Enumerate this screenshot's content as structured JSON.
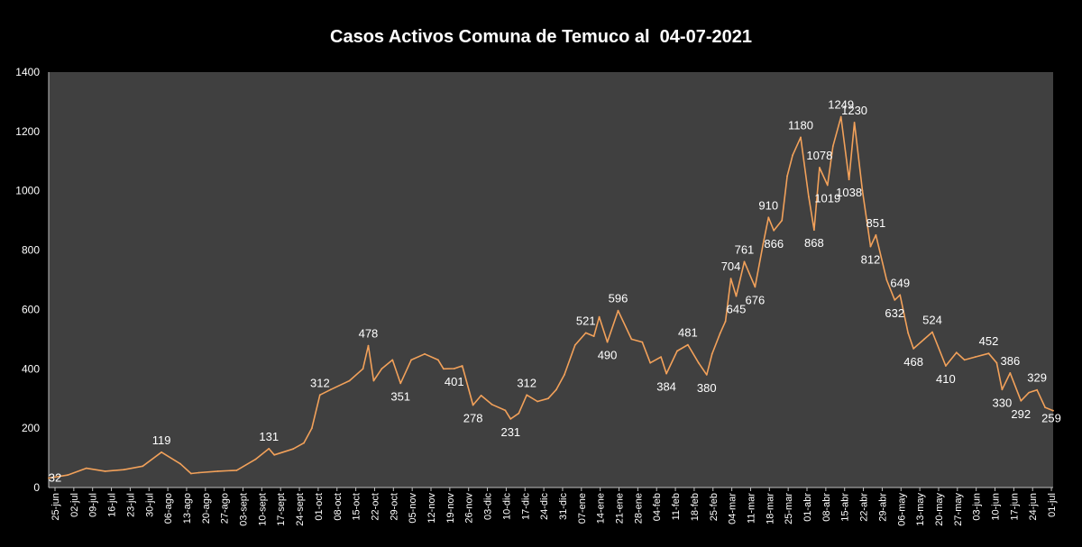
{
  "chart_data": {
    "type": "line",
    "title": "Casos Activos Comuna de Temuco al  04-07-2021",
    "xlabel": "",
    "ylabel": "",
    "ylim": [
      0,
      1400
    ],
    "yticks": [
      0,
      200,
      400,
      600,
      800,
      1000,
      1200,
      1400
    ],
    "grid": false,
    "colors": {
      "background": "#000000",
      "plot_area": "#404040",
      "line": "#f2a15a",
      "text": "#ffffff",
      "axis": "#bfbfbf"
    },
    "x_start": "2020-06-25",
    "x_end": "2021-07-04",
    "x_tick_labels": [
      "25-jun",
      "02-jul",
      "09-jul",
      "16-jul",
      "23-jul",
      "30-jul",
      "06-ago",
      "13-ago",
      "20-ago",
      "27-ago",
      "03-sept",
      "10-sept",
      "17-sept",
      "24-sept",
      "01-oct",
      "08-oct",
      "15-oct",
      "22-oct",
      "29-oct",
      "05-nov",
      "12-nov",
      "19-nov",
      "26-nov",
      "03-dic",
      "10-dic",
      "17-dic",
      "24-dic",
      "31-dic",
      "07-ene",
      "14-ene",
      "21-ene",
      "28-ene",
      "04-feb",
      "11-feb",
      "18-feb",
      "25-feb",
      "04-mar",
      "11-mar",
      "18-mar",
      "25-mar",
      "01-abr",
      "08-abr",
      "15-abr",
      "22-abr",
      "29-abr",
      "06-may",
      "13-may",
      "20-may",
      "27-may",
      "03-jun",
      "10-jun",
      "17-jun",
      "24-jun",
      "01-jul"
    ],
    "series": [
      {
        "points": [
          [
            "2020-06-25",
            32
          ],
          [
            "2020-07-02",
            42
          ],
          [
            "2020-07-09",
            65
          ],
          [
            "2020-07-16",
            55
          ],
          [
            "2020-07-23",
            60
          ],
          [
            "2020-07-30",
            72
          ],
          [
            "2020-08-06",
            119
          ],
          [
            "2020-08-13",
            80
          ],
          [
            "2020-08-17",
            47
          ],
          [
            "2020-08-20",
            50
          ],
          [
            "2020-08-27",
            55
          ],
          [
            "2020-09-03",
            58
          ],
          [
            "2020-09-10",
            95
          ],
          [
            "2020-09-15",
            131
          ],
          [
            "2020-09-17",
            110
          ],
          [
            "2020-09-24",
            130
          ],
          [
            "2020-09-28",
            150
          ],
          [
            "2020-10-01",
            200
          ],
          [
            "2020-10-04",
            312
          ],
          [
            "2020-10-08",
            330
          ],
          [
            "2020-10-15",
            360
          ],
          [
            "2020-10-20",
            400
          ],
          [
            "2020-10-22",
            478
          ],
          [
            "2020-10-24",
            360
          ],
          [
            "2020-10-27",
            400
          ],
          [
            "2020-10-31",
            430
          ],
          [
            "2020-11-03",
            351
          ],
          [
            "2020-11-07",
            430
          ],
          [
            "2020-11-12",
            450
          ],
          [
            "2020-11-17",
            430
          ],
          [
            "2020-11-19",
            400
          ],
          [
            "2020-11-23",
            401
          ],
          [
            "2020-11-26",
            410
          ],
          [
            "2020-11-30",
            278
          ],
          [
            "2020-12-03",
            310
          ],
          [
            "2020-12-07",
            280
          ],
          [
            "2020-12-12",
            260
          ],
          [
            "2020-12-14",
            231
          ],
          [
            "2020-12-17",
            250
          ],
          [
            "2020-12-20",
            312
          ],
          [
            "2020-12-24",
            290
          ],
          [
            "2020-12-28",
            300
          ],
          [
            "2020-12-31",
            330
          ],
          [
            "2021-01-03",
            380
          ],
          [
            "2021-01-07",
            480
          ],
          [
            "2021-01-11",
            521
          ],
          [
            "2021-01-14",
            510
          ],
          [
            "2021-01-16",
            575
          ],
          [
            "2021-01-19",
            490
          ],
          [
            "2021-01-23",
            596
          ],
          [
            "2021-01-28",
            500
          ],
          [
            "2021-02-01",
            490
          ],
          [
            "2021-02-04",
            420
          ],
          [
            "2021-02-08",
            440
          ],
          [
            "2021-02-10",
            384
          ],
          [
            "2021-02-14",
            460
          ],
          [
            "2021-02-18",
            481
          ],
          [
            "2021-02-22",
            420
          ],
          [
            "2021-02-25",
            380
          ],
          [
            "2021-02-27",
            450
          ],
          [
            "2021-03-02",
            520
          ],
          [
            "2021-03-04",
            560
          ],
          [
            "2021-03-06",
            704
          ],
          [
            "2021-03-08",
            645
          ],
          [
            "2021-03-11",
            761
          ],
          [
            "2021-03-15",
            676
          ],
          [
            "2021-03-18",
            820
          ],
          [
            "2021-03-20",
            910
          ],
          [
            "2021-03-22",
            866
          ],
          [
            "2021-03-25",
            900
          ],
          [
            "2021-03-27",
            1050
          ],
          [
            "2021-03-29",
            1120
          ],
          [
            "2021-04-01",
            1180
          ],
          [
            "2021-04-04",
            980
          ],
          [
            "2021-04-06",
            868
          ],
          [
            "2021-04-08",
            1078
          ],
          [
            "2021-04-11",
            1019
          ],
          [
            "2021-04-13",
            1150
          ],
          [
            "2021-04-16",
            1249
          ],
          [
            "2021-04-19",
            1038
          ],
          [
            "2021-04-21",
            1230
          ],
          [
            "2021-04-24",
            1000
          ],
          [
            "2021-04-27",
            812
          ],
          [
            "2021-04-29",
            851
          ],
          [
            "2021-05-03",
            700
          ],
          [
            "2021-05-06",
            632
          ],
          [
            "2021-05-08",
            649
          ],
          [
            "2021-05-11",
            520
          ],
          [
            "2021-05-13",
            468
          ],
          [
            "2021-05-17",
            500
          ],
          [
            "2021-05-20",
            524
          ],
          [
            "2021-05-25",
            410
          ],
          [
            "2021-05-29",
            455
          ],
          [
            "2021-06-01",
            430
          ],
          [
            "2021-06-05",
            440
          ],
          [
            "2021-06-10",
            452
          ],
          [
            "2021-06-13",
            420
          ],
          [
            "2021-06-15",
            330
          ],
          [
            "2021-06-18",
            386
          ],
          [
            "2021-06-22",
            292
          ],
          [
            "2021-06-25",
            320
          ],
          [
            "2021-06-28",
            329
          ],
          [
            "2021-07-01",
            270
          ],
          [
            "2021-07-04",
            259
          ]
        ]
      }
    ],
    "data_labels": [
      [
        "2020-06-25",
        32
      ],
      [
        "2020-08-06",
        119
      ],
      [
        "2020-09-15",
        131
      ],
      [
        "2020-10-04",
        312
      ],
      [
        "2020-10-22",
        478
      ],
      [
        "2020-11-03",
        351
      ],
      [
        "2020-11-23",
        401
      ],
      [
        "2020-11-30",
        278
      ],
      [
        "2020-12-14",
        231
      ],
      [
        "2020-12-20",
        312
      ],
      [
        "2021-01-11",
        521
      ],
      [
        "2021-01-19",
        490
      ],
      [
        "2021-01-23",
        596
      ],
      [
        "2021-02-10",
        384
      ],
      [
        "2021-02-18",
        481
      ],
      [
        "2021-02-25",
        380
      ],
      [
        "2021-03-06",
        704
      ],
      [
        "2021-03-08",
        645
      ],
      [
        "2021-03-11",
        761
      ],
      [
        "2021-03-15",
        676
      ],
      [
        "2021-03-20",
        910
      ],
      [
        "2021-03-22",
        866
      ],
      [
        "2021-04-01",
        1180
      ],
      [
        "2021-04-06",
        868
      ],
      [
        "2021-04-08",
        1078
      ],
      [
        "2021-04-11",
        1019
      ],
      [
        "2021-04-16",
        1249
      ],
      [
        "2021-04-19",
        1038
      ],
      [
        "2021-04-21",
        1230
      ],
      [
        "2021-04-27",
        812
      ],
      [
        "2021-04-29",
        851
      ],
      [
        "2021-05-06",
        632
      ],
      [
        "2021-05-08",
        649
      ],
      [
        "2021-05-13",
        468
      ],
      [
        "2021-05-20",
        524
      ],
      [
        "2021-05-25",
        410
      ],
      [
        "2021-06-10",
        452
      ],
      [
        "2021-06-15",
        330
      ],
      [
        "2021-06-18",
        386
      ],
      [
        "2021-06-22",
        292
      ],
      [
        "2021-06-28",
        329
      ],
      [
        "2021-07-04",
        259
      ]
    ]
  }
}
